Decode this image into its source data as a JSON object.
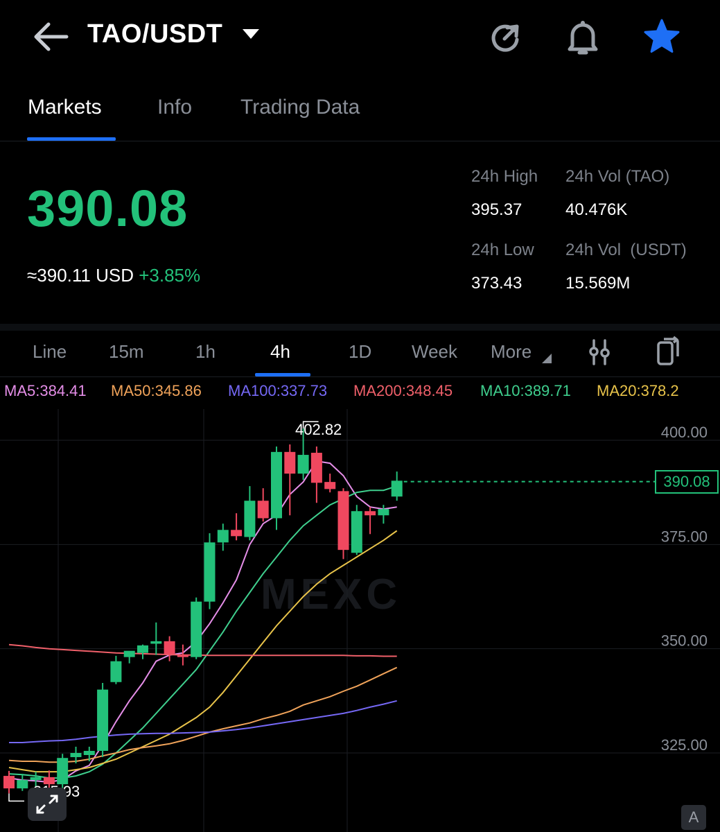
{
  "header": {
    "pair": "TAO/USDT",
    "icons": [
      "back-arrow-icon",
      "caret-down-icon",
      "refresh-icon",
      "bell-icon",
      "star-icon"
    ]
  },
  "tabs": [
    {
      "label": "Markets",
      "active": true
    },
    {
      "label": "Info",
      "active": false
    },
    {
      "label": "Trading Data",
      "active": false
    }
  ],
  "ticker": {
    "last_price": "390.08",
    "usd_value": "≈390.11 USD",
    "change": "+3.85%",
    "high_label": "24h High",
    "high_value": "395.37",
    "vol_tao_label": "24h Vol (TAO)",
    "vol_tao_value": "40.476K",
    "low_label": "24h Low",
    "low_value": "373.43",
    "vol_usdt_label": "24h Vol  (USDT)",
    "vol_usdt_value": "15.569M"
  },
  "timeframes": [
    {
      "label": "Line",
      "active": false
    },
    {
      "label": "15m",
      "active": false
    },
    {
      "label": "1h",
      "active": false
    },
    {
      "label": "4h",
      "active": true
    },
    {
      "label": "1D",
      "active": false
    },
    {
      "label": "Week",
      "active": false
    },
    {
      "label": "More",
      "active": false
    }
  ],
  "ma_legend": [
    {
      "text": "MA5:384.41",
      "color": "#e58ee8"
    },
    {
      "text": "MA50:345.86",
      "color": "#f0a35a"
    },
    {
      "text": "MA100:337.73",
      "color": "#7568f5"
    },
    {
      "text": "MA200:348.45",
      "color": "#f0606a"
    },
    {
      "text": "MA10:389.71",
      "color": "#3fcf8e"
    },
    {
      "text": "MA20:378.2",
      "color": "#e8c34a"
    }
  ],
  "chart_data": {
    "type": "candlestick",
    "timeframe": "4h",
    "y_axis_ticks": [
      "400.00",
      "375.00",
      "350.00",
      "325.00"
    ],
    "ylim": [
      306,
      419
    ],
    "last_price": "390.08",
    "high_marker": "402.82",
    "low_marker": "315.93",
    "colors": {
      "up": "#23c17a",
      "down": "#f0485f"
    },
    "candles": [
      {
        "o": 319.5,
        "h": 320.7,
        "l": 315.3,
        "c": 316.5
      },
      {
        "o": 316.5,
        "h": 320.0,
        "l": 315.9,
        "c": 318.5
      },
      {
        "o": 318.5,
        "h": 320.5,
        "l": 317.0,
        "c": 319.2
      },
      {
        "o": 319.2,
        "h": 320.8,
        "l": 316.0,
        "c": 317.5
      },
      {
        "o": 317.5,
        "h": 324.8,
        "l": 316.0,
        "c": 323.8
      },
      {
        "o": 324.0,
        "h": 326.5,
        "l": 322.5,
        "c": 325.0
      },
      {
        "o": 324.5,
        "h": 326.5,
        "l": 323.0,
        "c": 325.5
      },
      {
        "o": 325.5,
        "h": 341.8,
        "l": 324.0,
        "c": 340.2
      },
      {
        "o": 342.0,
        "h": 348.3,
        "l": 341.5,
        "c": 347.0
      },
      {
        "o": 348.0,
        "h": 349.0,
        "l": 346.5,
        "c": 349.5
      },
      {
        "o": 349.0,
        "h": 351.0,
        "l": 347.5,
        "c": 350.8
      },
      {
        "o": 351.2,
        "h": 356.3,
        "l": 348.5,
        "c": 351.8
      },
      {
        "o": 351.8,
        "h": 353.0,
        "l": 347.0,
        "c": 348.7
      },
      {
        "o": 348.5,
        "h": 351.0,
        "l": 346.0,
        "c": 348.0
      },
      {
        "o": 348.0,
        "h": 362.3,
        "l": 347.5,
        "c": 361.3
      },
      {
        "o": 361.3,
        "h": 377.7,
        "l": 359.5,
        "c": 375.5
      },
      {
        "o": 375.5,
        "h": 380.0,
        "l": 373.5,
        "c": 378.5
      },
      {
        "o": 378.5,
        "h": 382.5,
        "l": 376.0,
        "c": 377.0
      },
      {
        "o": 376.8,
        "h": 389.0,
        "l": 376.0,
        "c": 385.5
      },
      {
        "o": 385.5,
        "h": 388.5,
        "l": 380.5,
        "c": 381.3
      },
      {
        "o": 381.3,
        "h": 398.5,
        "l": 378.5,
        "c": 397.2
      },
      {
        "o": 397.2,
        "h": 399.0,
        "l": 382.0,
        "c": 392.0
      },
      {
        "o": 392.0,
        "h": 402.8,
        "l": 390.5,
        "c": 396.5
      },
      {
        "o": 397.0,
        "h": 398.5,
        "l": 385.0,
        "c": 389.8
      },
      {
        "o": 390.0,
        "h": 392.0,
        "l": 387.5,
        "c": 388.3
      },
      {
        "o": 387.8,
        "h": 388.5,
        "l": 371.5,
        "c": 373.7
      },
      {
        "o": 373.0,
        "h": 384.5,
        "l": 372.5,
        "c": 383.0
      },
      {
        "o": 383.0,
        "h": 384.0,
        "l": 377.5,
        "c": 382.0
      },
      {
        "o": 382.0,
        "h": 384.5,
        "l": 380.0,
        "c": 383.5
      },
      {
        "o": 386.5,
        "h": 392.5,
        "l": 385.5,
        "c": 390.3
      }
    ],
    "ma_lines": [
      {
        "name": "MA5",
        "color": "#e58ee8",
        "values": [
          319.0,
          318.5,
          318.3,
          318.0,
          318.6,
          320.7,
          322.0,
          327.0,
          332.5,
          337.5,
          341.8,
          347.0,
          348.5,
          349.0,
          351.7,
          356.0,
          361.0,
          366.5,
          375.0,
          380.0,
          382.0,
          387.0,
          390.0,
          395.0,
          394.5,
          391.5,
          386.5,
          384.0,
          383.5,
          384.0
        ]
      },
      {
        "name": "MA10",
        "color": "#3fcf8e",
        "values": [
          320.0,
          319.8,
          319.5,
          319.0,
          319.0,
          319.5,
          320.5,
          322.3,
          325.0,
          328.0,
          331.0,
          334.5,
          338.0,
          341.5,
          345.0,
          349.5,
          354.0,
          359.0,
          363.5,
          368.0,
          372.0,
          376.0,
          379.5,
          382.0,
          384.5,
          386.0,
          387.5,
          388.0,
          388.0,
          389.0
        ]
      },
      {
        "name": "MA20",
        "color": "#e8c34a",
        "values": [
          321.5,
          321.0,
          320.5,
          320.5,
          320.5,
          321.0,
          321.5,
          322.5,
          323.5,
          325.0,
          326.5,
          328.0,
          329.5,
          331.5,
          333.5,
          336.0,
          339.5,
          343.5,
          347.5,
          351.5,
          355.5,
          359.0,
          362.5,
          365.5,
          368.0,
          370.0,
          372.0,
          374.0,
          376.0,
          378.3
        ]
      },
      {
        "name": "MA50",
        "color": "#f0a35a",
        "values": [
          323.2,
          323.0,
          323.0,
          322.8,
          322.8,
          323.0,
          323.5,
          324.3,
          325.0,
          325.8,
          326.3,
          326.7,
          327.2,
          328.0,
          329.0,
          330.0,
          330.8,
          331.5,
          332.2,
          333.2,
          334.0,
          335.0,
          336.5,
          337.5,
          338.5,
          339.8,
          341.0,
          342.5,
          344.0,
          345.5
        ]
      },
      {
        "name": "MA100",
        "color": "#7568f5",
        "values": [
          327.5,
          327.5,
          327.7,
          327.9,
          328.0,
          328.3,
          328.7,
          329.0,
          329.3,
          329.5,
          329.6,
          329.7,
          329.7,
          329.8,
          329.9,
          330.0,
          330.3,
          330.6,
          331.0,
          331.5,
          332.0,
          332.5,
          333.0,
          333.5,
          334.0,
          334.5,
          335.2,
          336.0,
          336.7,
          337.5
        ]
      },
      {
        "name": "MA200",
        "color": "#f0606a",
        "values": [
          351.0,
          350.7,
          350.3,
          350.0,
          349.8,
          349.6,
          349.4,
          349.2,
          349.0,
          348.9,
          348.8,
          348.7,
          348.6,
          348.5,
          348.5,
          348.4,
          348.4,
          348.4,
          348.4,
          348.4,
          348.4,
          348.4,
          348.4,
          348.4,
          348.4,
          348.4,
          348.3,
          348.3,
          348.2,
          348.2
        ]
      }
    ]
  },
  "watermark": "MEXC",
  "a_badge": "A"
}
